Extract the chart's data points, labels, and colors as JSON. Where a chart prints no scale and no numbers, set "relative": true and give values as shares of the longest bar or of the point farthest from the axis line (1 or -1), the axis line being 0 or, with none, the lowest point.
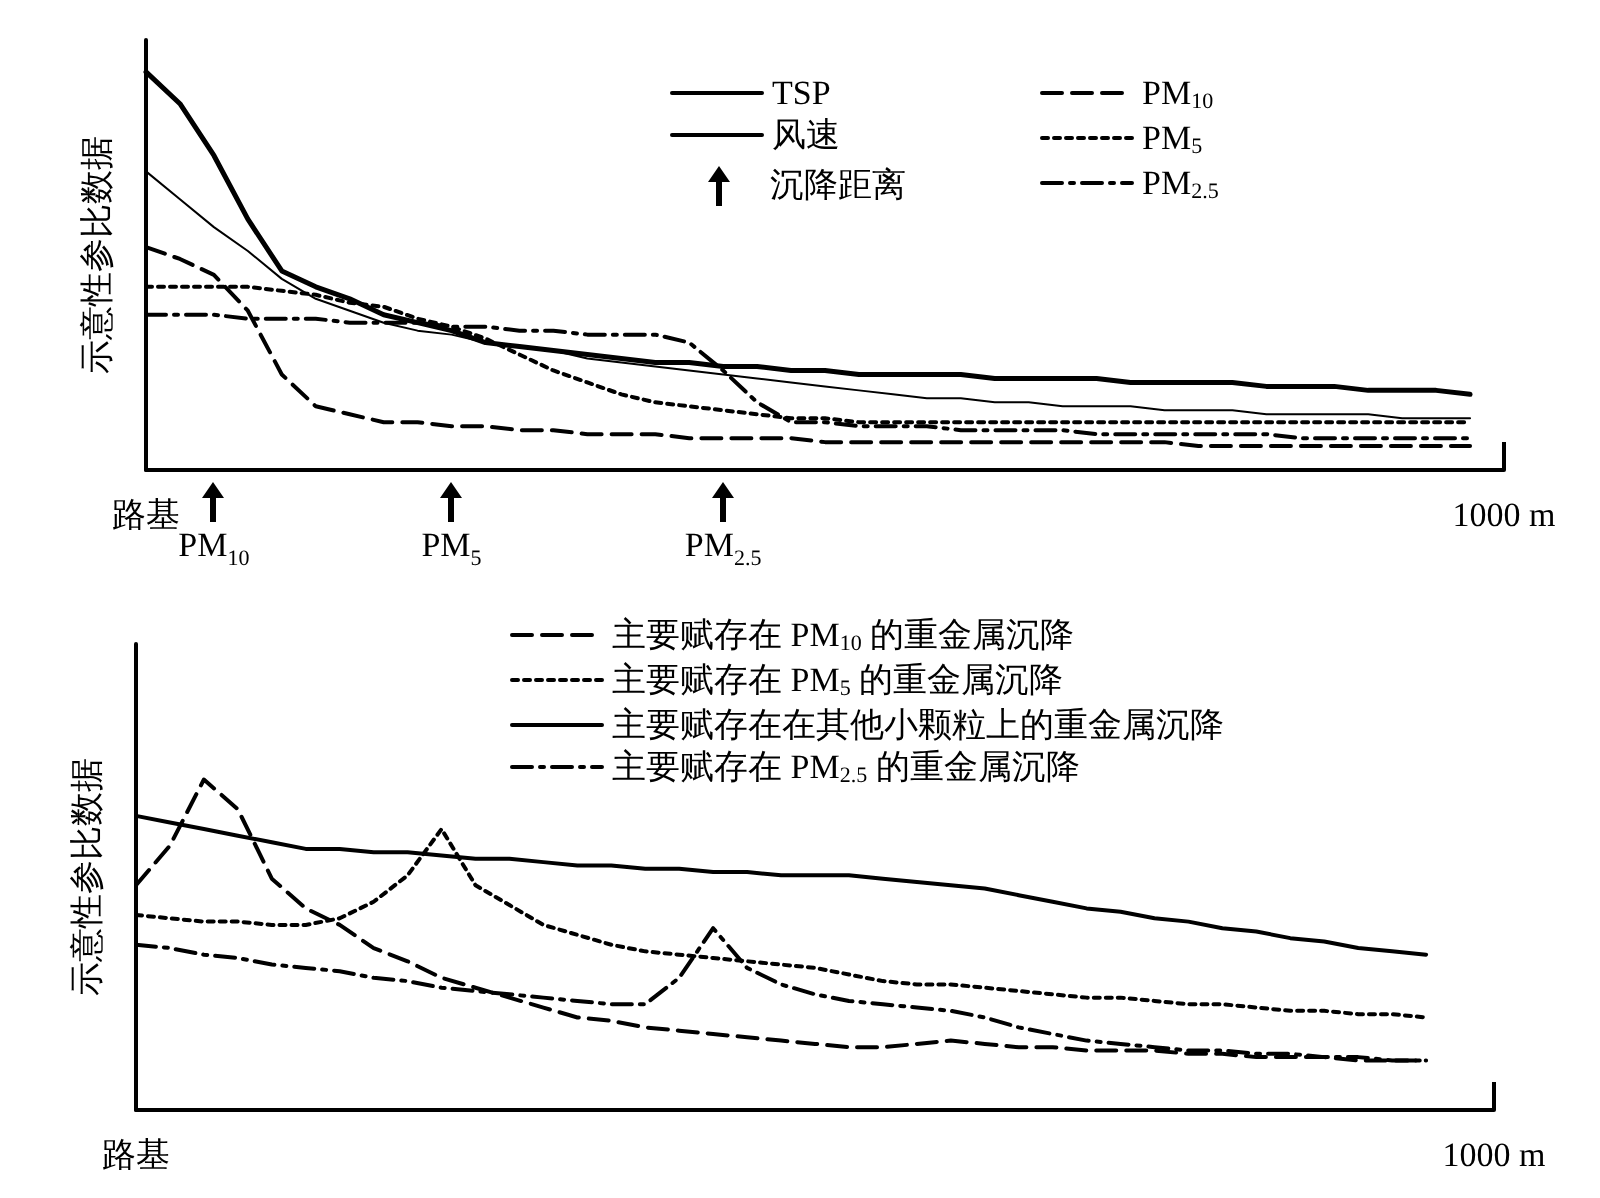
{
  "chart_data": [
    {
      "type": "line",
      "ylabel": "示意性参比数据",
      "relative": true,
      "tick_labels": "x",
      "grid": false,
      "legend": "top right",
      "marker": "none",
      "categories": [
        "路基",
        null,
        null,
        null,
        null,
        null,
        null,
        null,
        null,
        null,
        null,
        null,
        null,
        null,
        null,
        null,
        null,
        null,
        null,
        null,
        null,
        null,
        null,
        null,
        null,
        null,
        null,
        null,
        null,
        null,
        null,
        null,
        null,
        null,
        null,
        null,
        null,
        null,
        null,
        null,
        "1000 m"
      ],
      "series": [
        {
          "name": "TSP",
          "color": "#000000",
          "line_style": "solid",
          "values": [
            1.0,
            0.92,
            0.79,
            0.63,
            0.5,
            0.46,
            0.43,
            0.39,
            0.37,
            0.35,
            0.32,
            0.31,
            0.3,
            0.29,
            0.28,
            0.27,
            0.27,
            0.26,
            0.26,
            0.25,
            0.25,
            0.24,
            0.24,
            0.24,
            0.24,
            0.23,
            0.23,
            0.23,
            0.23,
            0.22,
            0.22,
            0.22,
            0.22,
            0.21,
            0.21,
            0.21,
            0.2,
            0.2,
            0.2,
            0.19,
            null
          ]
        },
        {
          "name": "风速",
          "color": "#000000",
          "line_style": "solid",
          "values": [
            0.75,
            0.68,
            0.61,
            0.55,
            0.48,
            0.43,
            0.4,
            0.37,
            0.35,
            0.34,
            0.32,
            0.31,
            0.3,
            0.28,
            0.27,
            0.26,
            0.25,
            0.24,
            0.23,
            0.22,
            0.21,
            0.2,
            0.19,
            0.18,
            0.18,
            0.17,
            0.17,
            0.16,
            0.16,
            0.16,
            0.15,
            0.15,
            0.15,
            0.14,
            0.14,
            0.14,
            0.14,
            0.13,
            0.13,
            0.13,
            null
          ]
        },
        {
          "name": "PM$_{10}$",
          "color": "#000000",
          "line_style": "dashed",
          "values": [
            0.56,
            0.53,
            0.49,
            0.4,
            0.24,
            0.16,
            0.14,
            0.12,
            0.12,
            0.11,
            0.11,
            0.1,
            0.1,
            0.09,
            0.09,
            0.09,
            0.08,
            0.08,
            0.08,
            0.08,
            0.07,
            0.07,
            0.07,
            0.07,
            0.07,
            0.07,
            0.07,
            0.07,
            0.07,
            0.07,
            0.07,
            0.06,
            0.06,
            0.06,
            0.06,
            0.06,
            0.06,
            0.06,
            0.06,
            0.06,
            null
          ]
        },
        {
          "name": "PM$_{5}$",
          "color": "#000000",
          "line_style": "dotted",
          "values": [
            0.46,
            0.46,
            0.46,
            0.46,
            0.45,
            0.44,
            0.42,
            0.41,
            0.38,
            0.36,
            0.33,
            0.29,
            0.25,
            0.22,
            0.19,
            0.17,
            0.16,
            0.15,
            0.14,
            0.13,
            0.13,
            0.12,
            0.12,
            0.12,
            0.12,
            0.12,
            0.12,
            0.12,
            0.12,
            0.12,
            0.12,
            0.12,
            0.12,
            0.12,
            0.12,
            0.12,
            0.12,
            0.12,
            0.12,
            0.12,
            null
          ]
        },
        {
          "name": "PM$_{2.5}$",
          "color": "#000000",
          "line_style": "dashdot",
          "values": [
            0.39,
            0.39,
            0.39,
            0.38,
            0.38,
            0.38,
            0.37,
            0.37,
            0.37,
            0.36,
            0.36,
            0.35,
            0.35,
            0.34,
            0.34,
            0.34,
            0.32,
            0.25,
            0.17,
            0.12,
            0.12,
            0.11,
            0.11,
            0.11,
            0.1,
            0.1,
            0.1,
            0.1,
            0.09,
            0.09,
            0.09,
            0.09,
            0.09,
            0.09,
            0.08,
            0.08,
            0.08,
            0.08,
            0.08,
            0.08,
            null
          ]
        }
      ],
      "annotations": [
        "沉降距离",
        "PM$_{10}$",
        "PM$_{5}$",
        "PM$_{2.5}$"
      ]
    },
    {
      "type": "line",
      "ylabel": "示意性参比数据",
      "relative": true,
      "tick_labels": "x",
      "grid": false,
      "legend": "top",
      "marker": "none",
      "categories": [
        "路基",
        null,
        null,
        null,
        null,
        null,
        null,
        null,
        null,
        null,
        null,
        null,
        null,
        null,
        null,
        null,
        null,
        null,
        null,
        null,
        null,
        null,
        null,
        null,
        null,
        null,
        null,
        null,
        null,
        null,
        null,
        null,
        null,
        null,
        null,
        null,
        null,
        null,
        null,
        null,
        "1000 m"
      ],
      "series": [
        {
          "name": "主要赋存在 PM$_{10}$ 的重金属沉降",
          "color": "#000000",
          "line_style": "dashed",
          "values": [
            0.68,
            0.8,
            1.0,
            0.91,
            0.7,
            0.61,
            0.56,
            0.49,
            0.45,
            0.4,
            0.37,
            0.34,
            0.31,
            0.28,
            0.27,
            0.25,
            0.24,
            0.23,
            0.22,
            0.21,
            0.2,
            0.19,
            0.19,
            0.2,
            0.21,
            0.2,
            0.19,
            0.19,
            0.18,
            0.18,
            0.18,
            0.17,
            0.17,
            0.16,
            0.16,
            0.16,
            0.15,
            0.15,
            0.15,
            null,
            null
          ]
        },
        {
          "name": "主要赋存在 PM$_{5}$ 的重金属沉降",
          "color": "#000000",
          "line_style": "dotted",
          "values": [
            0.59,
            0.58,
            0.57,
            0.57,
            0.56,
            0.56,
            0.58,
            0.63,
            0.71,
            0.85,
            0.68,
            0.62,
            0.56,
            0.53,
            0.5,
            0.48,
            0.47,
            0.46,
            0.45,
            0.44,
            0.43,
            0.41,
            0.39,
            0.38,
            0.38,
            0.37,
            0.36,
            0.35,
            0.34,
            0.34,
            0.33,
            0.32,
            0.32,
            0.31,
            0.3,
            0.3,
            0.29,
            0.29,
            0.28,
            null,
            null
          ]
        },
        {
          "name": "主要赋存在在其他小颗粒上的重金属沉降",
          "color": "#000000",
          "line_style": "solid",
          "values": [
            0.89,
            0.87,
            0.85,
            0.83,
            0.81,
            0.79,
            0.79,
            0.78,
            0.78,
            0.77,
            0.76,
            0.76,
            0.75,
            0.74,
            0.74,
            0.73,
            0.73,
            0.72,
            0.72,
            0.71,
            0.71,
            0.71,
            0.7,
            0.69,
            0.68,
            0.67,
            0.65,
            0.63,
            0.61,
            0.6,
            0.58,
            0.57,
            0.55,
            0.54,
            0.52,
            0.51,
            0.49,
            0.48,
            0.47,
            null,
            null
          ]
        },
        {
          "name": "主要赋存在 PM$_{2.5}$ 的重金属沉降",
          "color": "#000000",
          "line_style": "dashdot",
          "values": [
            0.5,
            0.49,
            0.47,
            0.46,
            0.44,
            0.43,
            0.42,
            0.4,
            0.39,
            0.37,
            0.36,
            0.35,
            0.34,
            0.33,
            0.32,
            0.32,
            0.4,
            0.55,
            0.43,
            0.38,
            0.35,
            0.33,
            0.32,
            0.31,
            0.3,
            0.28,
            0.25,
            0.23,
            0.21,
            0.2,
            0.19,
            0.18,
            0.18,
            0.17,
            0.17,
            0.16,
            0.16,
            0.15,
            0.15,
            null,
            null
          ]
        }
      ]
    }
  ]
}
